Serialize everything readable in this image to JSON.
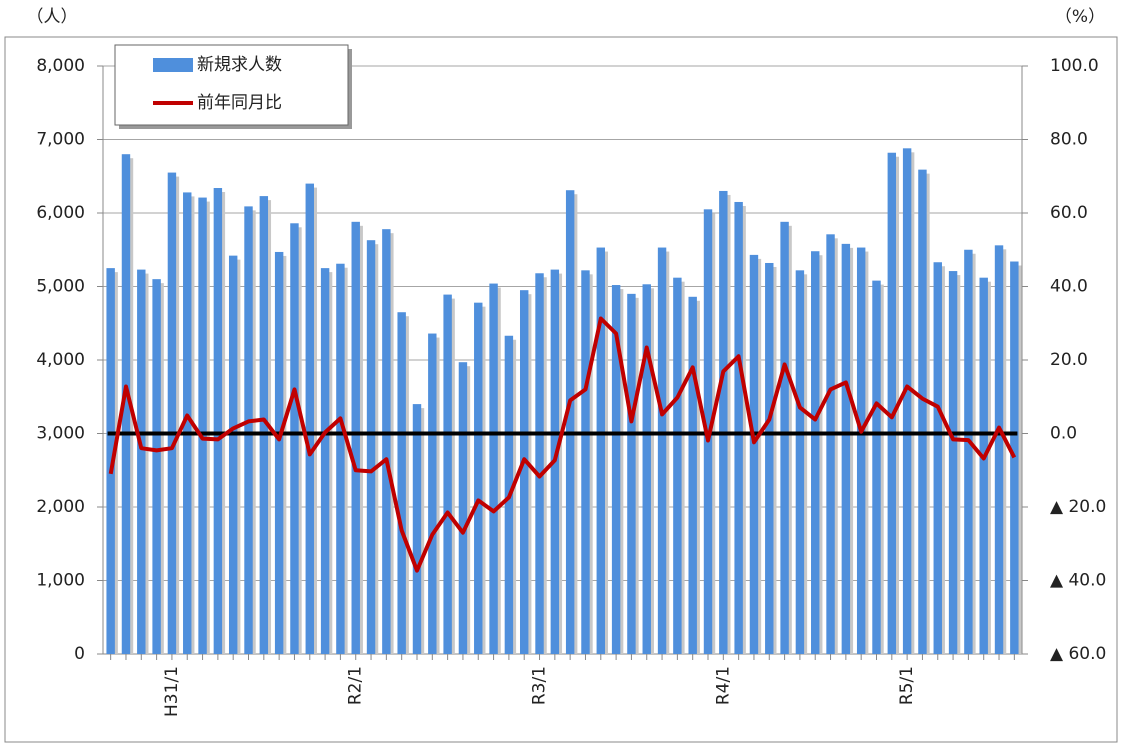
{
  "chart_data": {
    "type": "bar-line",
    "y_label": "（人）",
    "y2_label": "（%）",
    "categories": [
      null,
      null,
      null,
      null,
      "H31/1",
      null,
      null,
      null,
      null,
      null,
      null,
      null,
      null,
      null,
      null,
      null,
      "R2/1",
      null,
      null,
      null,
      null,
      null,
      null,
      null,
      null,
      null,
      null,
      null,
      "R3/1",
      null,
      null,
      null,
      null,
      null,
      null,
      null,
      null,
      null,
      null,
      null,
      "R4/1",
      null,
      null,
      null,
      null,
      null,
      null,
      null,
      null,
      null,
      null,
      null,
      "R5/1",
      null,
      null,
      null,
      null,
      null,
      null,
      null
    ],
    "series": [
      {
        "name": "新規求人数",
        "type": "bar",
        "color": "#4f8fdc",
        "values": [
          5250,
          6800,
          5230,
          5100,
          6550,
          6280,
          6210,
          6340,
          5420,
          6090,
          6230,
          5470,
          5860,
          6400,
          5250,
          5310,
          5880,
          5630,
          5780,
          4650,
          3400,
          4360,
          4890,
          3970,
          4780,
          5040,
          4330,
          4950,
          5180,
          5230,
          6310,
          5220,
          5530,
          5020,
          4900,
          5030,
          5530,
          5120,
          4860,
          6050,
          6300,
          6150,
          5430,
          5320,
          5880,
          5220,
          5480,
          5710,
          5580,
          5530,
          5080,
          6820,
          6880,
          6590,
          5330,
          5210,
          5500,
          5120,
          5560,
          5340
        ]
      },
      {
        "name": "前年同月比",
        "type": "line",
        "axis": "y2",
        "color": "#c00000",
        "values": [
          -11,
          12.8,
          -4,
          -4.6,
          -4,
          4.9,
          -1.4,
          -1.6,
          1.4,
          3.3,
          3.8,
          -1.6,
          12,
          -5.7,
          0.3,
          4.1,
          -10,
          -10.3,
          -7,
          -26.4,
          -37.3,
          -27.5,
          -21.5,
          -27,
          -18.2,
          -21.2,
          -17.4,
          -7,
          -11.7,
          -7.3,
          9,
          12,
          31.3,
          27.2,
          3.3,
          23.4,
          5.2,
          9.8,
          18,
          -1.9,
          16.9,
          21,
          -2.4,
          3.8,
          18.8,
          7.1,
          3.8,
          12,
          13.9,
          0.5,
          8.2,
          4.4,
          12.8,
          9.5,
          7.3,
          -1.6,
          -1.8,
          -6.8,
          1.6,
          -6.5
        ]
      }
    ],
    "ylim": [
      0,
      8000
    ],
    "yticks": [
      0,
      {
        "value": 1000,
        "label": "1,000"
      },
      {
        "value": 2000,
        "label": "2,000"
      },
      {
        "value": 3000,
        "label": "3,000"
      },
      {
        "value": 4000,
        "label": "4,000"
      },
      {
        "value": 5000,
        "label": "5,000"
      },
      {
        "value": 6000,
        "label": "6,000"
      },
      {
        "value": 7000,
        "label": "7,000"
      },
      {
        "value": 8000,
        "label": "8,000"
      }
    ],
    "y2lim": [
      -60,
      100
    ],
    "y2ticks": [
      {
        "value": -60,
        "label": "▲ 60.0"
      },
      {
        "value": -40,
        "label": "▲ 40.0"
      },
      {
        "value": -20,
        "label": "▲ 20.0"
      },
      {
        "value": 0,
        "label": "0.0"
      },
      {
        "value": 20,
        "label": "20.0"
      },
      {
        "value": 40,
        "label": "40.0"
      },
      {
        "value": 60,
        "label": "60.0"
      },
      {
        "value": 80,
        "label": "80.0"
      },
      {
        "value": 100,
        "label": "100.0"
      }
    ],
    "grid": true,
    "legend": "top-left"
  }
}
